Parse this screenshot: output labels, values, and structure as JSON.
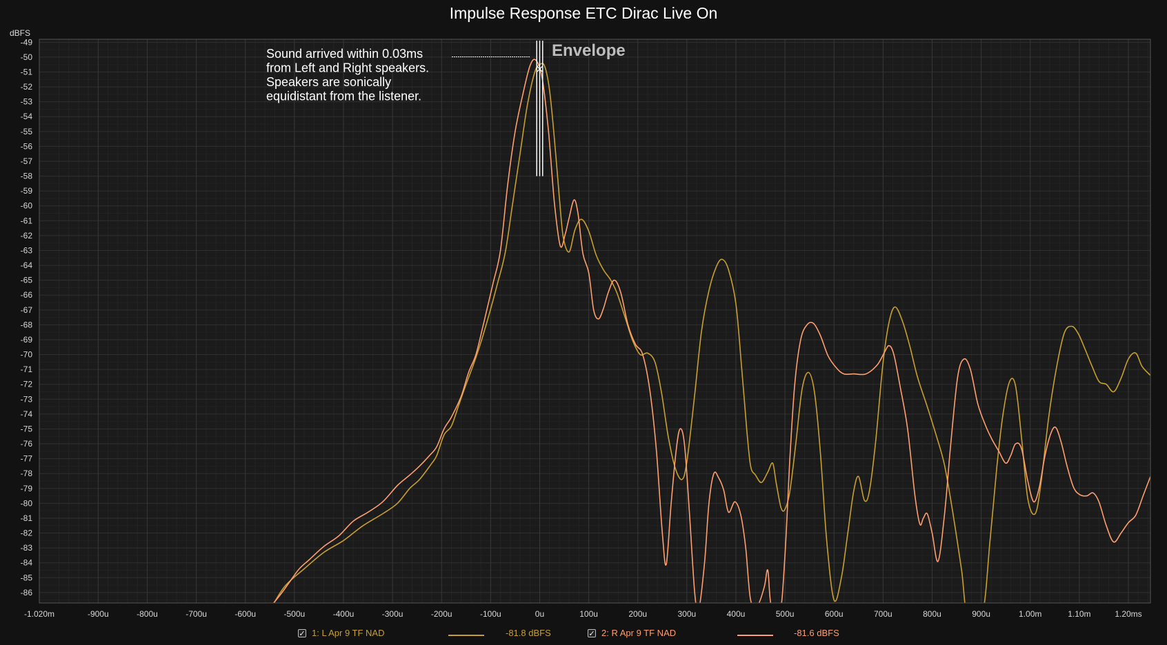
{
  "chart_data": {
    "type": "line",
    "title": "Impulse Response ETC Dirac Live On",
    "ylabel": "dBFS",
    "xlabel": "",
    "xlim": [
      -1020,
      1245
    ],
    "ylim": [
      -86.7,
      -48.8
    ],
    "x_unit": "µs",
    "grid": true,
    "x_ticks": [
      {
        "v": -1020,
        "label": "-1.020m"
      },
      {
        "v": -900,
        "label": "-900u"
      },
      {
        "v": -800,
        "label": "-800u"
      },
      {
        "v": -700,
        "label": "-700u"
      },
      {
        "v": -600,
        "label": "-600u"
      },
      {
        "v": -500,
        "label": "-500u"
      },
      {
        "v": -400,
        "label": "-400u"
      },
      {
        "v": -300,
        "label": "-300u"
      },
      {
        "v": -200,
        "label": "-200u"
      },
      {
        "v": -100,
        "label": "-100u"
      },
      {
        "v": 0,
        "label": "0u"
      },
      {
        "v": 100,
        "label": "100u"
      },
      {
        "v": 200,
        "label": "200u"
      },
      {
        "v": 300,
        "label": "300u"
      },
      {
        "v": 400,
        "label": "400u"
      },
      {
        "v": 500,
        "label": "500u"
      },
      {
        "v": 600,
        "label": "600u"
      },
      {
        "v": 700,
        "label": "700u"
      },
      {
        "v": 800,
        "label": "800u"
      },
      {
        "v": 900,
        "label": "900u"
      },
      {
        "v": 1000,
        "label": "1.00m"
      },
      {
        "v": 1100,
        "label": "1.10m"
      },
      {
        "v": 1200,
        "label": "1.20ms"
      }
    ],
    "y_ticks": [
      -49,
      -50,
      -51,
      -52,
      -53,
      -54,
      -55,
      -56,
      -57,
      -58,
      -59,
      -60,
      -61,
      -62,
      -63,
      -64,
      -65,
      -66,
      -67,
      -68,
      -69,
      -70,
      -71,
      -72,
      -73,
      -74,
      -75,
      -76,
      -77,
      -78,
      -79,
      -80,
      -81,
      -82,
      -83,
      -84,
      -85,
      -86
    ],
    "series": [
      {
        "name": "1: L Apr 9 TF NAD",
        "value_label": "-81.8 dBFS",
        "color": "#c8a030",
        "points": [
          [
            -550,
            -87.2
          ],
          [
            -520,
            -85.6
          ],
          [
            -480,
            -84.4
          ],
          [
            -440,
            -83.3
          ],
          [
            -400,
            -82.5
          ],
          [
            -360,
            -81.5
          ],
          [
            -320,
            -80.7
          ],
          [
            -290,
            -80.0
          ],
          [
            -265,
            -79.0
          ],
          [
            -245,
            -78.4
          ],
          [
            -222,
            -77.4
          ],
          [
            -210,
            -76.8
          ],
          [
            -195,
            -75.4
          ],
          [
            -180,
            -74.8
          ],
          [
            -165,
            -73.4
          ],
          [
            -150,
            -72.0
          ],
          [
            -130,
            -70.2
          ],
          [
            -110,
            -68.1
          ],
          [
            -85,
            -65.1
          ],
          [
            -70,
            -63.1
          ],
          [
            -55,
            -59.8
          ],
          [
            -40,
            -56.5
          ],
          [
            -25,
            -53.2
          ],
          [
            -10,
            -51.0
          ],
          [
            0,
            -50.5
          ],
          [
            10,
            -50.6
          ],
          [
            20,
            -52.2
          ],
          [
            30,
            -55.5
          ],
          [
            40,
            -59.4
          ],
          [
            48,
            -62.1
          ],
          [
            60,
            -63.1
          ],
          [
            72,
            -61.6
          ],
          [
            85,
            -60.9
          ],
          [
            100,
            -61.7
          ],
          [
            115,
            -63.3
          ],
          [
            130,
            -64.3
          ],
          [
            145,
            -65.0
          ],
          [
            158,
            -65.9
          ],
          [
            175,
            -67.6
          ],
          [
            190,
            -69.1
          ],
          [
            205,
            -70.0
          ],
          [
            220,
            -69.9
          ],
          [
            235,
            -70.5
          ],
          [
            248,
            -72.5
          ],
          [
            262,
            -75.5
          ],
          [
            276,
            -77.6
          ],
          [
            290,
            -78.4
          ],
          [
            300,
            -77.2
          ],
          [
            315,
            -73.0
          ],
          [
            330,
            -68.4
          ],
          [
            345,
            -65.7
          ],
          [
            360,
            -64.1
          ],
          [
            372,
            -63.6
          ],
          [
            385,
            -64.3
          ],
          [
            400,
            -66.6
          ],
          [
            412,
            -71.0
          ],
          [
            422,
            -75.0
          ],
          [
            430,
            -77.5
          ],
          [
            440,
            -78.1
          ],
          [
            452,
            -78.6
          ],
          [
            465,
            -77.9
          ],
          [
            475,
            -77.3
          ],
          [
            482,
            -78.6
          ],
          [
            492,
            -80.3
          ],
          [
            500,
            -80.4
          ],
          [
            510,
            -79.2
          ],
          [
            522,
            -76.0
          ],
          [
            535,
            -72.3
          ],
          [
            548,
            -71.2
          ],
          [
            560,
            -72.5
          ],
          [
            572,
            -76.5
          ],
          [
            585,
            -82.5
          ],
          [
            600,
            -86.5
          ],
          [
            615,
            -85.0
          ],
          [
            628,
            -82.0
          ],
          [
            640,
            -79.2
          ],
          [
            650,
            -78.2
          ],
          [
            662,
            -79.8
          ],
          [
            672,
            -79.2
          ],
          [
            685,
            -75.8
          ],
          [
            700,
            -70.5
          ],
          [
            713,
            -67.7
          ],
          [
            725,
            -66.8
          ],
          [
            740,
            -67.8
          ],
          [
            755,
            -69.5
          ],
          [
            770,
            -71.5
          ],
          [
            790,
            -73.5
          ],
          [
            808,
            -75.4
          ],
          [
            825,
            -77.4
          ],
          [
            842,
            -80.6
          ],
          [
            860,
            -84.5
          ],
          [
            872,
            -87.5
          ],
          [
            902,
            -87.5
          ],
          [
            918,
            -82.5
          ],
          [
            932,
            -77.5
          ],
          [
            945,
            -73.9
          ],
          [
            958,
            -71.8
          ],
          [
            970,
            -72.1
          ],
          [
            982,
            -75.5
          ],
          [
            995,
            -79.7
          ],
          [
            1010,
            -80.7
          ],
          [
            1022,
            -78.6
          ],
          [
            1038,
            -74.1
          ],
          [
            1055,
            -70.6
          ],
          [
            1070,
            -68.5
          ],
          [
            1085,
            -68.1
          ],
          [
            1098,
            -68.6
          ],
          [
            1110,
            -69.5
          ],
          [
            1125,
            -70.7
          ],
          [
            1140,
            -71.8
          ],
          [
            1155,
            -72.0
          ],
          [
            1170,
            -72.5
          ],
          [
            1185,
            -71.6
          ],
          [
            1200,
            -70.3
          ],
          [
            1215,
            -69.9
          ],
          [
            1228,
            -70.8
          ],
          [
            1245,
            -71.4
          ]
        ]
      },
      {
        "name": "2: R Apr 9 TF NAD",
        "value_label": "-81.6 dBFS",
        "color": "#ff9f70",
        "points": [
          [
            -555,
            -87.2
          ],
          [
            -530,
            -86.2
          ],
          [
            -510,
            -85.3
          ],
          [
            -490,
            -84.4
          ],
          [
            -470,
            -83.8
          ],
          [
            -440,
            -82.9
          ],
          [
            -410,
            -82.2
          ],
          [
            -380,
            -81.2
          ],
          [
            -350,
            -80.6
          ],
          [
            -320,
            -79.9
          ],
          [
            -290,
            -78.8
          ],
          [
            -265,
            -78.1
          ],
          [
            -245,
            -77.5
          ],
          [
            -225,
            -76.8
          ],
          [
            -210,
            -76.2
          ],
          [
            -195,
            -75.0
          ],
          [
            -180,
            -74.2
          ],
          [
            -160,
            -72.8
          ],
          [
            -145,
            -71.2
          ],
          [
            -130,
            -70.0
          ],
          [
            -115,
            -68.0
          ],
          [
            -95,
            -65.2
          ],
          [
            -80,
            -63.0
          ],
          [
            -65,
            -58.5
          ],
          [
            -50,
            -55.0
          ],
          [
            -35,
            -52.6
          ],
          [
            -20,
            -50.6
          ],
          [
            -8,
            -50.2
          ],
          [
            5,
            -51.4
          ],
          [
            18,
            -55.0
          ],
          [
            30,
            -59.8
          ],
          [
            42,
            -62.7
          ],
          [
            52,
            -61.9
          ],
          [
            60,
            -60.8
          ],
          [
            70,
            -59.6
          ],
          [
            78,
            -60.5
          ],
          [
            88,
            -63.2
          ],
          [
            100,
            -64.5
          ],
          [
            110,
            -67.0
          ],
          [
            120,
            -67.6
          ],
          [
            130,
            -66.9
          ],
          [
            140,
            -65.8
          ],
          [
            152,
            -65.0
          ],
          [
            165,
            -65.8
          ],
          [
            180,
            -68.0
          ],
          [
            195,
            -69.3
          ],
          [
            210,
            -70.0
          ],
          [
            225,
            -72.5
          ],
          [
            238,
            -76.5
          ],
          [
            250,
            -82.0
          ],
          [
            258,
            -84.1
          ],
          [
            268,
            -80.0
          ],
          [
            278,
            -76.5
          ],
          [
            286,
            -75.0
          ],
          [
            295,
            -76.0
          ],
          [
            305,
            -80.5
          ],
          [
            316,
            -86.0
          ],
          [
            324,
            -87.2
          ],
          [
            336,
            -84.0
          ],
          [
            345,
            -80.0
          ],
          [
            355,
            -78.0
          ],
          [
            365,
            -78.3
          ],
          [
            375,
            -79.1
          ],
          [
            385,
            -80.6
          ],
          [
            398,
            -79.9
          ],
          [
            410,
            -80.8
          ],
          [
            420,
            -83.0
          ],
          [
            430,
            -86.5
          ],
          [
            445,
            -86.8
          ],
          [
            458,
            -85.6
          ],
          [
            465,
            -84.5
          ],
          [
            472,
            -86.9
          ],
          [
            490,
            -87.3
          ],
          [
            500,
            -83.5
          ],
          [
            510,
            -77.0
          ],
          [
            520,
            -72.0
          ],
          [
            532,
            -69.0
          ],
          [
            545,
            -68.0
          ],
          [
            558,
            -67.9
          ],
          [
            572,
            -68.7
          ],
          [
            588,
            -70.1
          ],
          [
            605,
            -70.9
          ],
          [
            620,
            -71.3
          ],
          [
            640,
            -71.3
          ],
          [
            665,
            -71.3
          ],
          [
            688,
            -70.7
          ],
          [
            702,
            -69.9
          ],
          [
            712,
            -69.4
          ],
          [
            722,
            -70.0
          ],
          [
            735,
            -72.2
          ],
          [
            750,
            -75.0
          ],
          [
            765,
            -79.5
          ],
          [
            775,
            -81.4
          ],
          [
            782,
            -81.0
          ],
          [
            790,
            -80.7
          ],
          [
            800,
            -82.0
          ],
          [
            812,
            -83.9
          ],
          [
            825,
            -80.8
          ],
          [
            838,
            -76.0
          ],
          [
            852,
            -71.5
          ],
          [
            865,
            -70.3
          ],
          [
            878,
            -71.0
          ],
          [
            893,
            -73.3
          ],
          [
            908,
            -74.7
          ],
          [
            922,
            -75.7
          ],
          [
            936,
            -76.5
          ],
          [
            950,
            -77.3
          ],
          [
            960,
            -76.8
          ],
          [
            970,
            -76.0
          ],
          [
            982,
            -76.3
          ],
          [
            995,
            -78.5
          ],
          [
            1007,
            -79.9
          ],
          [
            1018,
            -79.0
          ],
          [
            1030,
            -76.8
          ],
          [
            1042,
            -75.3
          ],
          [
            1052,
            -74.9
          ],
          [
            1063,
            -75.9
          ],
          [
            1075,
            -77.5
          ],
          [
            1088,
            -78.9
          ],
          [
            1100,
            -79.4
          ],
          [
            1115,
            -79.5
          ],
          [
            1128,
            -79.3
          ],
          [
            1140,
            -79.9
          ],
          [
            1155,
            -81.5
          ],
          [
            1170,
            -82.6
          ],
          [
            1185,
            -82.0
          ],
          [
            1200,
            -81.3
          ],
          [
            1215,
            -80.8
          ],
          [
            1230,
            -79.5
          ],
          [
            1245,
            -78.2
          ]
        ]
      }
    ],
    "annotations": {
      "note_lines": [
        "Sound arrived within 0.03ms",
        "from Left and Right speakers.",
        "Speakers are sonically",
        "equidistant from the listener."
      ],
      "envelope_label": "Envelope",
      "cursor_x": [
        -6,
        0,
        6
      ],
      "cursor_y_range": [
        -49,
        -58
      ]
    }
  },
  "legend": {
    "items": [
      {
        "label": "1: L Apr 9 TF NAD",
        "value": "-81.8 dBFS",
        "checked": "✓"
      },
      {
        "label": "2: R Apr 9 TF NAD",
        "value": "-81.6 dBFS",
        "checked": "✓"
      }
    ]
  }
}
